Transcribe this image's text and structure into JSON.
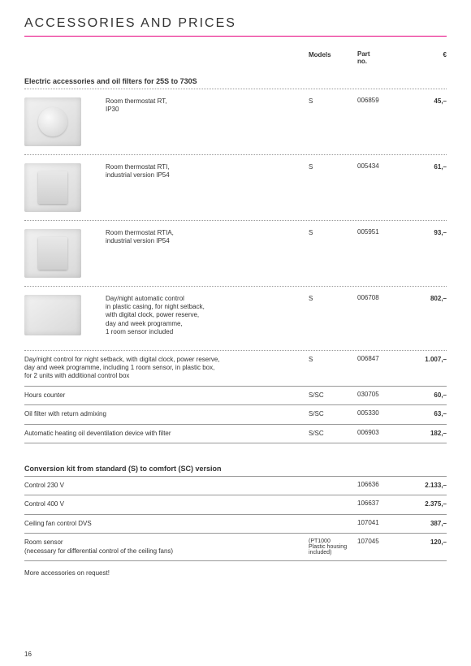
{
  "title": "ACCESSORIES AND PRICES",
  "columns": {
    "models": "Models",
    "part": "Part\nno.",
    "price": "€"
  },
  "section1": {
    "heading": "Electric accessories and oil filters for 25S to 730S",
    "rows": [
      {
        "img": "round",
        "desc": "Room thermostat RT,\nIP30",
        "model": "S",
        "part": "006859",
        "price": "45,–"
      },
      {
        "img": "box",
        "desc": "Room thermostat RTI,\nindustrial version IP54",
        "model": "S",
        "part": "005434",
        "price": "61,–"
      },
      {
        "img": "box",
        "desc": "Room thermostat RTIA,\nindustrial version IP54",
        "model": "S",
        "part": "005951",
        "price": "93,–"
      },
      {
        "img": "wide",
        "desc": "Day/night automatic control\nin plastic casing, for night setback,\nwith digital clock, power reserve,\nday and week programme,\n1 room sensor included",
        "model": "S",
        "part": "006708",
        "price": "802,–"
      }
    ],
    "textRows": [
      {
        "desc": "Day/night control for night setback, with digital clock, power reserve,\nday and week programme, including 1 room sensor, in plastic box,\nfor 2 units with additional control box",
        "model": "S",
        "part": "006847",
        "price": "1.007,–"
      },
      {
        "desc": "Hours counter",
        "model": "S/SC",
        "part": "030705",
        "price": "60,–"
      },
      {
        "desc": "Oil filter with return admixing",
        "model": "S/SC",
        "part": "005330",
        "price": "63,–"
      },
      {
        "desc": "Automatic heating oil deventilation device with filter",
        "model": "S/SC",
        "part": "006903",
        "price": "182,–"
      }
    ]
  },
  "section2": {
    "heading": "Conversion kit from standard (S) to comfort (SC) version",
    "rows": [
      {
        "desc": "Control 230 V",
        "model": "",
        "part": "106636",
        "price": "2.133,–"
      },
      {
        "desc": "Control 400 V",
        "model": "",
        "part": "106637",
        "price": "2.375,–"
      },
      {
        "desc": "Ceiling fan control DVS",
        "model": "",
        "part": "107041",
        "price": "387,–"
      },
      {
        "desc": "Room sensor\n(necessary for differential control of the ceiling fans)",
        "model": "(PT1000\nPlastic housing\nincluded)",
        "part": "107045",
        "price": "120,–"
      }
    ]
  },
  "footnote": "More accessories on request!",
  "pageNumber": "16"
}
